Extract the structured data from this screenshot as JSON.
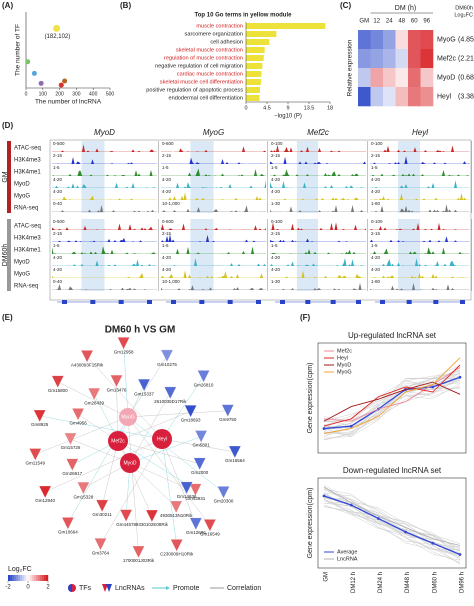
{
  "panel_labels": [
    "(A)",
    "(B)",
    "(C)",
    "(D)",
    "(E)",
    "(F)"
  ],
  "chart_data": [
    {
      "type": "scatter",
      "x_label": "The number of lncRNA",
      "y_label": "The number of TF",
      "x": [
        10,
        50,
        90,
        210,
        230,
        182
      ],
      "values": [
        45,
        25,
        8,
        5,
        12,
        102
      ],
      "colors": [
        "#7cc36a",
        "#58a6de",
        "#8c6bb1",
        "#d9342b",
        "#b5651d",
        "#f2e24a"
      ],
      "annotation": "(182,102)",
      "xlim": [
        0,
        500
      ],
      "ylim": [
        0,
        130
      ],
      "xticks": [
        0,
        100,
        200,
        300,
        400,
        500
      ]
    },
    {
      "type": "hbar",
      "title": "Top 10 Go terms in yellow module",
      "x_label": "−log10 (P)",
      "categories": [
        "muscle contraction",
        "sarcomere organization",
        "cell adhesion",
        "skeletal muscle contraction",
        "regulation of muscle contraction",
        "negative regulation of cell migration",
        "cardiac muscle contraction",
        "skeletal muscle cell differentiation",
        "positive regulation of apoptotic process",
        "endodermal cell differentiation"
      ],
      "label_colors": [
        "#d42020",
        "#222222",
        "#222222",
        "#d42020",
        "#d42020",
        "#222222",
        "#d42020",
        "#d42020",
        "#222222",
        "#222222"
      ],
      "values": [
        17,
        6.5,
        5,
        4,
        3.8,
        3.5,
        3.3,
        3.2,
        3,
        2.9
      ],
      "color": "#ece23a",
      "xlim": [
        0,
        18
      ],
      "xticks": [
        0,
        4.5,
        9,
        13.5,
        18
      ]
    },
    {
      "type": "heatmap",
      "title": "DM (h)",
      "y_label": "Relative expression",
      "corner_title": "DM60h",
      "corner_subtitle": "Log₂FC",
      "columns": [
        "GM",
        "12",
        "24",
        "48",
        "60",
        "96"
      ],
      "rows": [
        "MyoG",
        "Mef2c",
        "MyoD",
        "Heyl"
      ],
      "row_notes": [
        "(4.85)",
        "(2.21)",
        "(0.68)",
        "(3.38)"
      ],
      "values": [
        [
          -1.5,
          -1.3,
          -1.0,
          0.3,
          1.5,
          1.6
        ],
        [
          -1.1,
          -1.0,
          -0.8,
          -0.4,
          1.5,
          1.8
        ],
        [
          -0.6,
          0.8,
          0.5,
          0.2,
          1.3,
          0.5
        ],
        [
          -1.8,
          -0.6,
          -0.3,
          0.6,
          1.2,
          1.0
        ]
      ],
      "clim": [
        -2,
        2
      ]
    },
    {
      "type": "line",
      "title": "Up-regulated lncRNA set",
      "y_label": "Gene expression(cpm)",
      "categories": [
        "GM",
        "DM12 h",
        "DM24 h",
        "DM48 h",
        "DM60 h",
        "DM96 h"
      ],
      "ylim": [
        -2,
        2.5
      ],
      "series": [
        {
          "name": "Average",
          "legend": false,
          "color": "#3248d6",
          "values": [
            -1.0,
            -0.9,
            -0.2,
            0.6,
            0.7,
            1.1
          ]
        },
        {
          "name": "Mef2c",
          "color": "#f08a9a",
          "values": [
            -0.6,
            -0.7,
            -0.2,
            0.1,
            0.8,
            1.5
          ]
        },
        {
          "name": "Heyl",
          "color": "#e02525",
          "values": [
            -0.9,
            -0.6,
            0.3,
            0.7,
            0.5,
            1.6
          ]
        },
        {
          "name": "MyoD",
          "color": "#a01818",
          "values": [
            -0.7,
            -0.1,
            0.2,
            0.6,
            0.9,
            0.4
          ]
        },
        {
          "name": "MyoG",
          "color": "#f0a030",
          "values": [
            -1.2,
            -1.0,
            -0.5,
            0.5,
            0.8,
            1.9
          ]
        }
      ]
    },
    {
      "type": "line",
      "title": "Down-regulated lncRNA set",
      "y_label": "Gene expression(cpm)",
      "categories": [
        "GM",
        "DM12 h",
        "DM24 h",
        "DM48 h",
        "DM60 h",
        "DM96 h"
      ],
      "ylim": [
        -2,
        2
      ],
      "series": [
        {
          "name": "Average",
          "color": "#3248d6",
          "values": [
            1.2,
            0.8,
            0.2,
            -0.4,
            -0.9,
            -1.4
          ]
        },
        {
          "name": "LncRNA",
          "color": "#b0b0b0",
          "values": [
            1.6,
            0.9,
            0.3,
            -0.2,
            -0.7,
            -1.0
          ]
        }
      ]
    }
  ],
  "tracks": {
    "columns": [
      "MyoD",
      "MyoG",
      "Mef2c",
      "Heyl"
    ],
    "groups": [
      {
        "name": "GM",
        "color": "#b22222",
        "rows": [
          "ATAC-seq",
          "H3K4me3",
          "H3K4me1",
          "MyoD",
          "MyoG",
          "RNA-seq"
        ],
        "ranges": [
          [
            "0-500",
            "0-600",
            "0-100",
            "0-100"
          ],
          [
            "2-15",
            "2-15",
            "2-15",
            "2-15"
          ],
          [
            "1-5",
            "1-5",
            "1-5",
            "1-5"
          ],
          [
            "4-20",
            "4-20",
            "4-20",
            "4-20"
          ],
          [
            "4-20",
            "4-20",
            "4-20",
            "4-20"
          ],
          [
            "0-40",
            "10-1,000",
            "1-30",
            "1-80"
          ]
        ]
      },
      {
        "name": "DM60h",
        "color": "#999999",
        "rows": [
          "ATAC-seq",
          "H3K4me3",
          "H3K4me1",
          "MyoD",
          "MyoG",
          "RNA-seq"
        ],
        "ranges": [
          [
            "0-500",
            "0-600",
            "0-100",
            "0-100"
          ],
          [
            "2-15",
            "2-15",
            "2-15",
            "2-15"
          ],
          [
            "1-5",
            "1-5",
            "1-5",
            "1-5"
          ],
          [
            "4-20",
            "4-20",
            "4-20",
            "4-20"
          ],
          [
            "4-20",
            "4-20",
            "4-20",
            "4-20"
          ],
          [
            "0-40",
            "10-1,000",
            "1-30",
            "1-80"
          ]
        ]
      }
    ]
  },
  "network": {
    "title": "DM60 h VS GM",
    "tfs": [
      {
        "label": "MyoG",
        "color": "#f3a6b4"
      },
      {
        "label": "Mef2c",
        "color": "#d8203c"
      },
      {
        "label": "Heyl",
        "color": "#d8203c"
      },
      {
        "label": "MyoD",
        "color": "#d8203c"
      }
    ],
    "lncrnas": [
      {
        "label": "Gm12958",
        "fc": 1.6
      },
      {
        "label": "Gm13476",
        "fc": 1.4
      },
      {
        "label": "A430093F15Rik",
        "fc": 1.5
      },
      {
        "label": "Gm28439",
        "fc": 1.2
      },
      {
        "label": "Gm15800",
        "fc": 1.7
      },
      {
        "label": "Gm4956",
        "fc": 1.3
      },
      {
        "label": "Gm8925",
        "fc": 1.8
      },
      {
        "label": "Gm15726",
        "fc": 1.1
      },
      {
        "label": "Gm11549",
        "fc": 1.6
      },
      {
        "label": "Gm26917",
        "fc": 1.4
      },
      {
        "label": "Gm12840",
        "fc": 1.9
      },
      {
        "label": "Gm15328",
        "fc": 1.2
      },
      {
        "label": "Gm10664",
        "fc": 1.5
      },
      {
        "label": "Gm30211",
        "fc": 1.7
      },
      {
        "label": "Gm3764",
        "fc": 1.3
      },
      {
        "label": "Gm44578",
        "fc": 1.6
      },
      {
        "label": "1700001J03Rik",
        "fc": 1.4
      },
      {
        "label": "9330102E08Rik",
        "fc": 1.8
      },
      {
        "label": "C230009H10Rik",
        "fc": 1.5
      },
      {
        "label": "4930513N10Rik",
        "fc": 1.2
      },
      {
        "label": "Gm16549",
        "fc": 1.6
      },
      {
        "label": "Gm43931",
        "fc": 1.3
      },
      {
        "label": "Gm12606",
        "fc": -1.5
      },
      {
        "label": "Gm14636",
        "fc": -1.7
      },
      {
        "label": "Gm20300",
        "fc": -1.4
      },
      {
        "label": "Gm2000",
        "fc": -1.6
      },
      {
        "label": "Gm15564",
        "fc": -1.8
      },
      {
        "label": "Gm5801",
        "fc": -1.3
      },
      {
        "label": "Gm9750",
        "fc": -1.5
      },
      {
        "label": "Gm18693",
        "fc": -1.9
      },
      {
        "label": "Gm26810",
        "fc": -1.4
      },
      {
        "label": "2610035D17Rik",
        "fc": -1.6
      },
      {
        "label": "Gm10275",
        "fc": -1.2
      },
      {
        "label": "Gm15337",
        "fc": -1.7
      }
    ],
    "colorbar": {
      "title": "Log₂FC",
      "lim": [
        -2,
        2
      ],
      "ticks": [
        -2,
        0,
        2
      ]
    },
    "legend": [
      "TFs",
      "LncRNAs",
      "Promote",
      "Correlation"
    ]
  }
}
